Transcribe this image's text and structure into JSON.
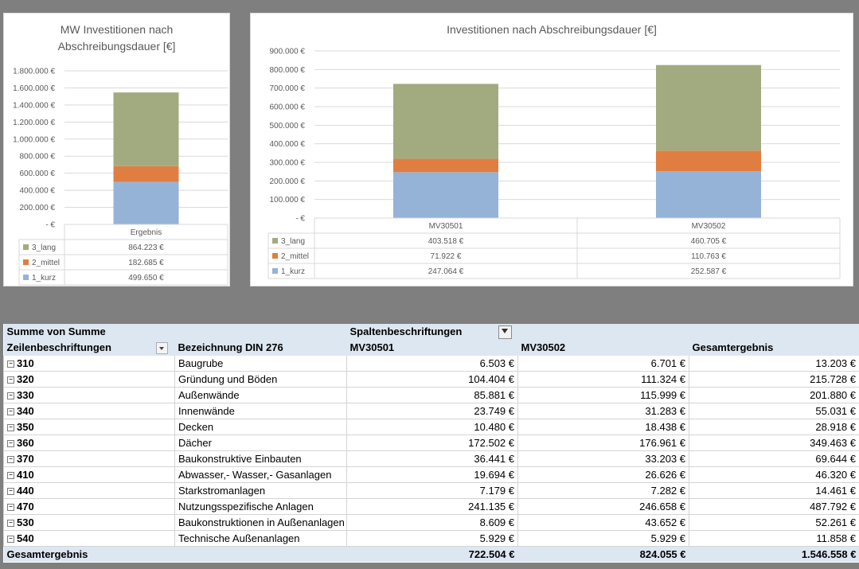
{
  "chart_data": [
    {
      "type": "bar",
      "stacked": true,
      "title": "MW Investitionen nach Abschreibungsdauer [€]",
      "categories": [
        "Ergebnis"
      ],
      "series": [
        {
          "name": "1_kurz",
          "values": [
            499650
          ],
          "labels": [
            "499.650 €"
          ],
          "color": "#95b3d7"
        },
        {
          "name": "2_mittel",
          "values": [
            182685
          ],
          "labels": [
            "182.685 €"
          ],
          "color": "#e07e41"
        },
        {
          "name": "3_lang",
          "values": [
            864223
          ],
          "labels": [
            "864.223 €"
          ],
          "color": "#a2ab80"
        }
      ],
      "yticks": [
        {
          "v": 0,
          "label": "-   €"
        },
        {
          "v": 200000,
          "label": "200.000 €"
        },
        {
          "v": 400000,
          "label": "400.000 €"
        },
        {
          "v": 600000,
          "label": "600.000 €"
        },
        {
          "v": 800000,
          "label": "800.000 €"
        },
        {
          "v": 1000000,
          "label": "1.000.000 €"
        },
        {
          "v": 1200000,
          "label": "1.200.000 €"
        },
        {
          "v": 1400000,
          "label": "1.400.000 €"
        },
        {
          "v": 1600000,
          "label": "1.600.000 €"
        },
        {
          "v": 1800000,
          "label": "1.800.000 €"
        }
      ],
      "ylim": [
        0,
        1800000
      ],
      "grid": true,
      "legend": "data-table"
    },
    {
      "type": "bar",
      "stacked": true,
      "title": "Investitionen nach Abschreibungsdauer [€]",
      "categories": [
        "MV30501",
        "MV30502"
      ],
      "series": [
        {
          "name": "1_kurz",
          "values": [
            247064,
            252587
          ],
          "labels": [
            "247.064 €",
            "252.587 €"
          ],
          "color": "#95b3d7"
        },
        {
          "name": "2_mittel",
          "values": [
            71922,
            110763
          ],
          "labels": [
            "71.922 €",
            "110.763 €"
          ],
          "color": "#e07e41"
        },
        {
          "name": "3_lang",
          "values": [
            403518,
            460705
          ],
          "labels": [
            "403.518 €",
            "460.705 €"
          ],
          "color": "#a2ab80"
        }
      ],
      "yticks": [
        {
          "v": 0,
          "label": "-   €"
        },
        {
          "v": 100000,
          "label": "100.000 €"
        },
        {
          "v": 200000,
          "label": "200.000 €"
        },
        {
          "v": 300000,
          "label": "300.000 €"
        },
        {
          "v": 400000,
          "label": "400.000 €"
        },
        {
          "v": 500000,
          "label": "500.000 €"
        },
        {
          "v": 600000,
          "label": "600.000 €"
        },
        {
          "v": 700000,
          "label": "700.000 €"
        },
        {
          "v": 800000,
          "label": "800.000 €"
        },
        {
          "v": 900000,
          "label": "900.000 €"
        }
      ],
      "ylim": [
        0,
        900000
      ],
      "grid": true,
      "legend": "data-table"
    }
  ],
  "pivot": {
    "corner": "Summe von Summe",
    "col_caption": "Spaltenbeschriftungen",
    "row_caption": "Zeilenbeschriftungen",
    "desc_header": "Bezeichnung DIN 276",
    "col1": "MV30501",
    "col2": "MV30502",
    "col3": "Gesamtergebnis",
    "rows": [
      {
        "code": "310",
        "desc": "Baugrube",
        "v1": "6.503 €",
        "v2": "6.701 €",
        "tot": "13.203 €"
      },
      {
        "code": "320",
        "desc": "Gründung und Böden",
        "v1": "104.404 €",
        "v2": "111.324 €",
        "tot": "215.728 €"
      },
      {
        "code": "330",
        "desc": "Außenwände",
        "v1": "85.881 €",
        "v2": "115.999 €",
        "tot": "201.880 €"
      },
      {
        "code": "340",
        "desc": "Innenwände",
        "v1": "23.749 €",
        "v2": "31.283 €",
        "tot": "55.031 €"
      },
      {
        "code": "350",
        "desc": "Decken",
        "v1": "10.480 €",
        "v2": "18.438 €",
        "tot": "28.918 €"
      },
      {
        "code": "360",
        "desc": "Dächer",
        "v1": "172.502 €",
        "v2": "176.961 €",
        "tot": "349.463 €"
      },
      {
        "code": "370",
        "desc": "Baukonstruktive Einbauten",
        "v1": "36.441 €",
        "v2": "33.203 €",
        "tot": "69.644 €"
      },
      {
        "code": "410",
        "desc": "Abwasser,- Wasser,- Gasanlagen",
        "v1": "19.694 €",
        "v2": "26.626 €",
        "tot": "46.320 €"
      },
      {
        "code": "440",
        "desc": "Starkstromanlagen",
        "v1": "7.179 €",
        "v2": "7.282 €",
        "tot": "14.461 €"
      },
      {
        "code": "470",
        "desc": "Nutzungsspezifische Anlagen",
        "v1": "241.135 €",
        "v2": "246.658 €",
        "tot": "487.792 €"
      },
      {
        "code": "530",
        "desc": "Baukonstruktionen in Außenanlagen",
        "v1": "8.609 €",
        "v2": "43.652 €",
        "tot": "52.261 €"
      },
      {
        "code": "540",
        "desc": "Technische Außenanlagen",
        "v1": "5.929 €",
        "v2": "5.929 €",
        "tot": "11.858 €"
      }
    ],
    "total": {
      "label": "Gesamtergebnis",
      "v1": "722.504 €",
      "v2": "824.055 €",
      "tot": "1.546.558 €"
    }
  }
}
